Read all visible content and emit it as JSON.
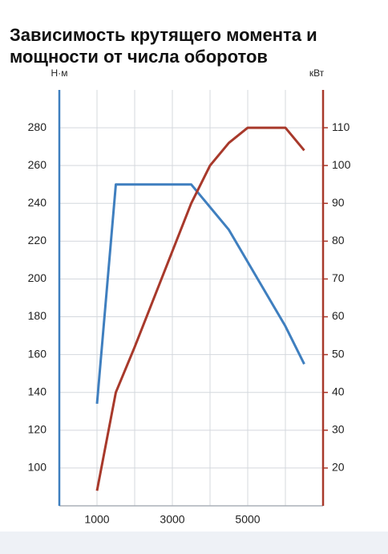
{
  "chart_data": {
    "type": "line",
    "title": "Зависимость крутящего момента и мощности от числа оборотов",
    "ylabel": "Н·м",
    "y2label": "кВт",
    "xlim": [
      0,
      7000
    ],
    "xticks": [
      1000,
      {
        "value": 2000,
        "label": null
      },
      3000,
      {
        "value": 4000,
        "label": null
      },
      5000,
      {
        "value": 6000,
        "label": null
      }
    ],
    "ylim": [
      80,
      300
    ],
    "yticks": [
      100,
      120,
      140,
      160,
      180,
      200,
      220,
      240,
      260,
      280
    ],
    "y2lim": [
      10,
      120
    ],
    "y2ticks": [
      20,
      30,
      40,
      50,
      60,
      70,
      80,
      90,
      100,
      110
    ],
    "grid": true,
    "ycolor": "#3f7fbf",
    "y2color": "#a8392b",
    "series": [
      {
        "color": "#3f7fbf",
        "x": [
          1000,
          1500,
          3500,
          4500,
          6000,
          6500
        ],
        "values": [
          134,
          250,
          250,
          226,
          175,
          155
        ]
      },
      {
        "color": "#a8392b",
        "axis": "y2",
        "x": [
          1000,
          1500,
          2000,
          3500,
          4000,
          4500,
          5000,
          6000,
          6500
        ],
        "values": [
          14,
          40,
          52,
          90,
          100,
          106,
          110,
          110,
          104
        ]
      }
    ]
  }
}
